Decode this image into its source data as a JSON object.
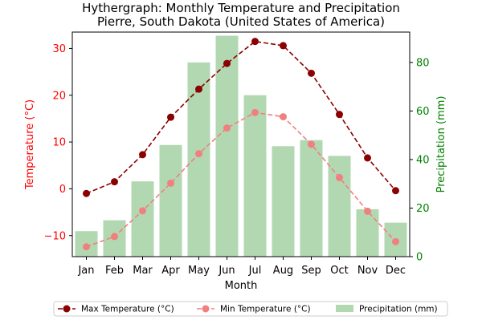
{
  "chart_data": {
    "type": "bar+line",
    "title": "Hythergraph: Monthly Temperature and Precipitation",
    "subtitle": "Pierre, South Dakota (United States of America)",
    "xlabel": "Month",
    "ylabel_left": "Temperature (°C)",
    "ylabel_right": "Precipitation (mm)",
    "categories": [
      "Jan",
      "Feb",
      "Mar",
      "Apr",
      "May",
      "Jun",
      "Jul",
      "Aug",
      "Sep",
      "Oct",
      "Nov",
      "Dec"
    ],
    "ylim_left": [
      -14.5,
      33.5
    ],
    "yticks_left": [
      -10,
      0,
      10,
      20,
      30
    ],
    "ylim_right": [
      0,
      92.5
    ],
    "yticks_right": [
      0,
      20,
      40,
      60,
      80
    ],
    "grid": false,
    "legend_position": "bottom",
    "series": [
      {
        "name": "Max Temperature (°C)",
        "axis": "left",
        "kind": "line",
        "color": "#8b0000",
        "dashed": true,
        "values": [
          -1.0,
          1.5,
          7.3,
          15.3,
          21.3,
          26.8,
          31.5,
          30.6,
          24.7,
          15.9,
          6.6,
          -0.4
        ]
      },
      {
        "name": "Min Temperature (°C)",
        "axis": "left",
        "kind": "line",
        "color": "#f08080",
        "dashed": true,
        "values": [
          -12.4,
          -10.2,
          -4.7,
          1.2,
          7.5,
          13.0,
          16.3,
          15.4,
          9.5,
          2.4,
          -4.8,
          -11.3
        ]
      },
      {
        "name": "Precipitation (mm)",
        "axis": "right",
        "kind": "bar",
        "color": "#b2d8b2",
        "values": [
          10.5,
          15.0,
          31.0,
          46.0,
          80.0,
          91.0,
          66.5,
          45.5,
          48.0,
          41.5,
          19.5,
          14.0
        ]
      }
    ],
    "colors": {
      "left_axis": "#ff0000",
      "right_axis": "#008000"
    }
  }
}
